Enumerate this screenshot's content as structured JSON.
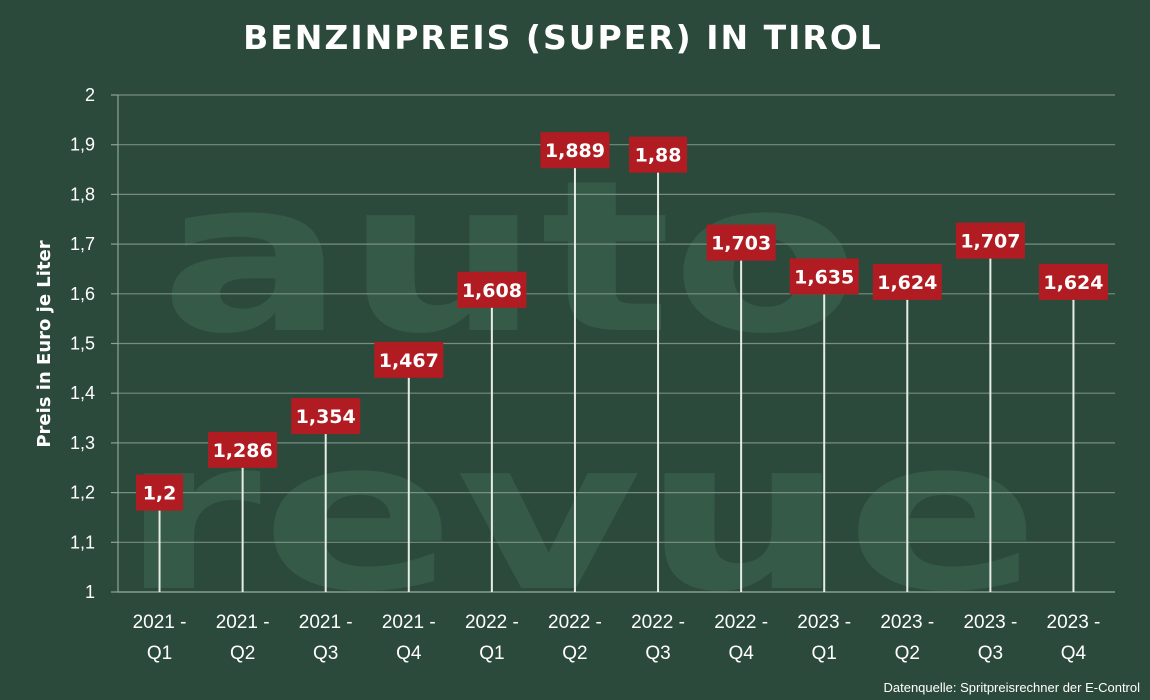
{
  "chart_data": {
    "type": "bar",
    "title": "BENZINPREIS (SUPER) IN TIROL",
    "ylabel": "Preis in Euro je Liter",
    "xlabel": "",
    "ylim": [
      1,
      2
    ],
    "yticks": [
      "1",
      "1,1",
      "1,2",
      "1,3",
      "1,4",
      "1,5",
      "1,6",
      "1,7",
      "1,8",
      "1,9",
      "2"
    ],
    "categories": [
      [
        "2021 -",
        "Q1"
      ],
      [
        "2021 -",
        "Q2"
      ],
      [
        "2021 -",
        "Q3"
      ],
      [
        "2021 -",
        "Q4"
      ],
      [
        "2022 -",
        "Q1"
      ],
      [
        "2022 -",
        "Q2"
      ],
      [
        "2022 -",
        "Q3"
      ],
      [
        "2022 -",
        "Q4"
      ],
      [
        "2023 -",
        "Q1"
      ],
      [
        "2023 -",
        "Q2"
      ],
      [
        "2023 -",
        "Q3"
      ],
      [
        "2023 -",
        "Q4"
      ]
    ],
    "values": [
      1.2,
      1.286,
      1.354,
      1.467,
      1.608,
      1.889,
      1.88,
      1.703,
      1.635,
      1.624,
      1.707,
      1.624
    ],
    "value_labels": [
      "1,2",
      "1,286",
      "1,354",
      "1,467",
      "1,608",
      "1,889",
      "1,88",
      "1,703",
      "1,635",
      "1,624",
      "1,707",
      "1,624"
    ],
    "grid": true,
    "colors": {
      "background": "#2c4a3b",
      "label_box": "#b01c22",
      "grid": "#8fa398",
      "stem": "#e6ece8"
    }
  },
  "watermark": {
    "line1": "auto",
    "line2": "revue"
  },
  "source": "Datenquelle: Spritpreisrechner der E-Control"
}
